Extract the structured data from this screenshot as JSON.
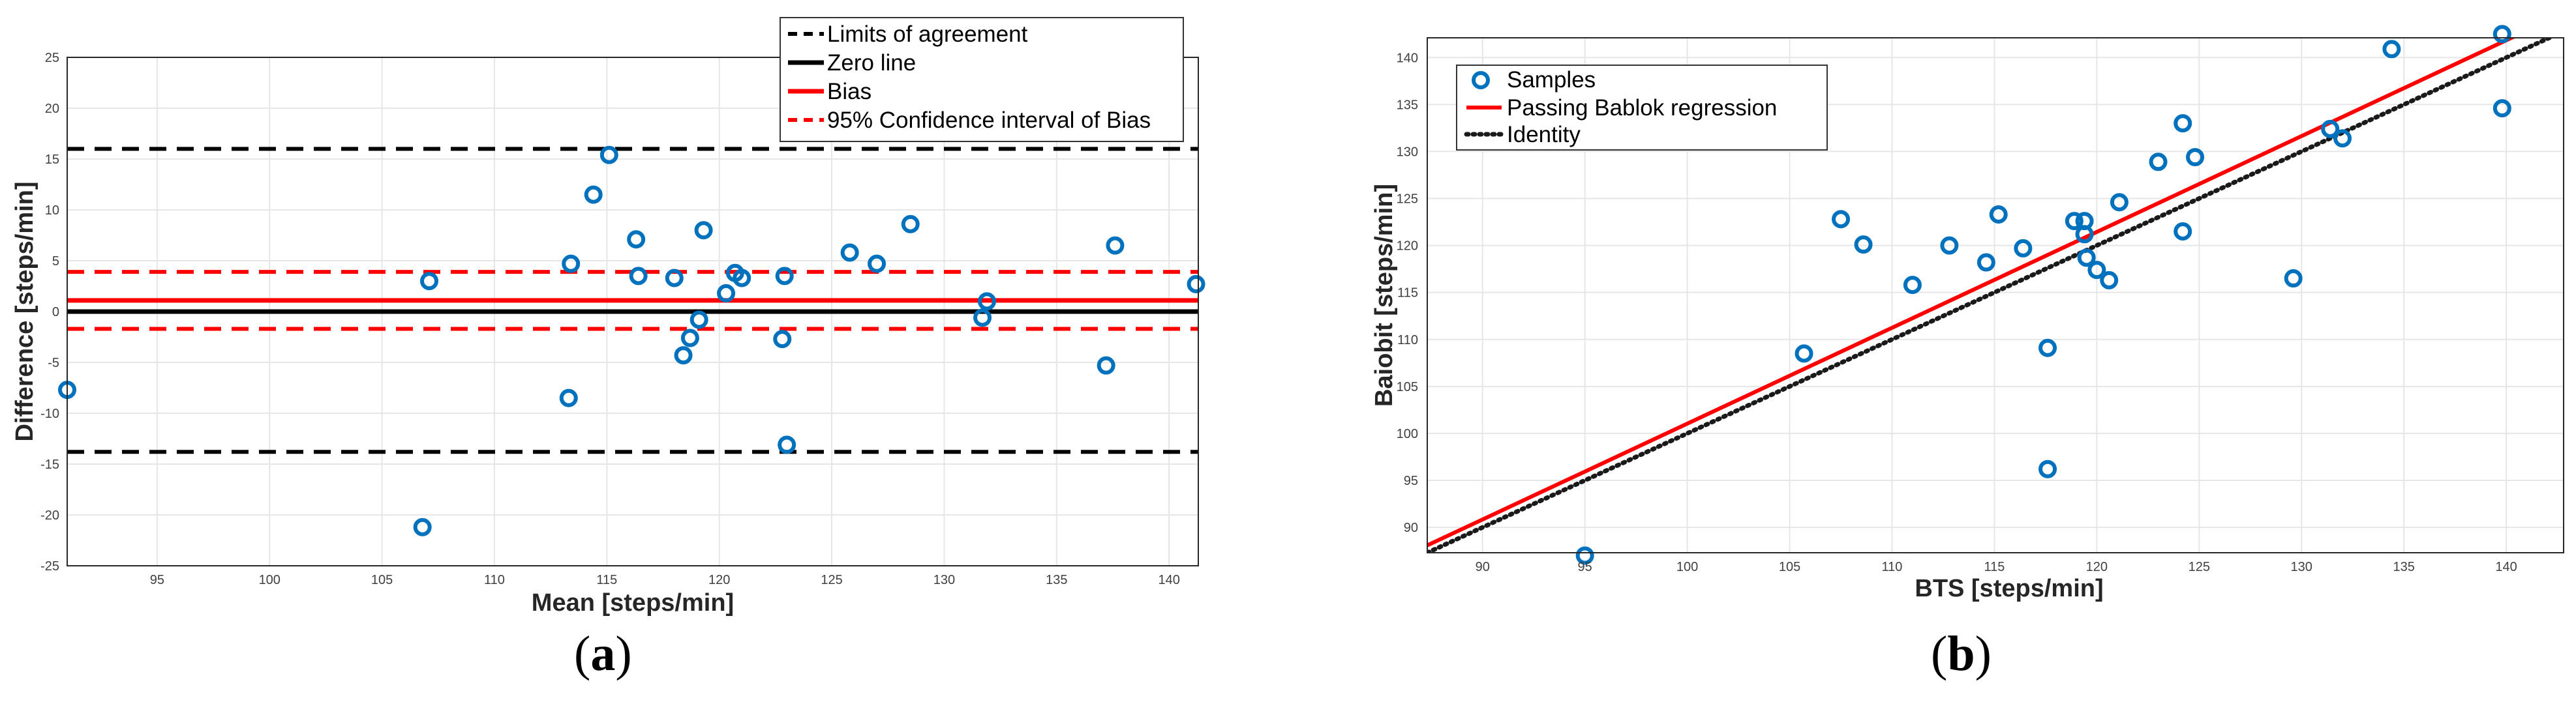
{
  "chart_data": [
    {
      "type": "scatter",
      "panel": "(a)",
      "xlabel": "Mean [steps/min]",
      "ylabel": "Difference [steps/min]",
      "xlim": [
        91,
        141.3
      ],
      "ylim": [
        -25,
        25
      ],
      "xticks": [
        95,
        100,
        105,
        110,
        115,
        120,
        125,
        130,
        135,
        140
      ],
      "yticks": [
        -25,
        -20,
        -15,
        -10,
        -5,
        0,
        5,
        10,
        15,
        20,
        25
      ],
      "grid": true,
      "legend_position": "top-right",
      "legend": [
        "Limits of agreement",
        "Zero line",
        "Bias",
        "95% Confidence interval of Bias"
      ],
      "lines": {
        "upper_loa": 16.0,
        "lower_loa": -13.8,
        "zero": 0,
        "bias": 1.1,
        "ci_upper": 3.9,
        "ci_lower": -1.7
      },
      "points": [
        [
          91.0,
          -7.7
        ],
        [
          106.8,
          -21.2
        ],
        [
          107.1,
          3.0
        ],
        [
          113.3,
          -8.5
        ],
        [
          113.4,
          4.7
        ],
        [
          114.4,
          11.5
        ],
        [
          115.1,
          15.4
        ],
        [
          116.3,
          7.1
        ],
        [
          116.4,
          3.5
        ],
        [
          118.0,
          3.3
        ],
        [
          118.4,
          -4.3
        ],
        [
          118.7,
          -2.6
        ],
        [
          119.1,
          -0.8
        ],
        [
          119.3,
          8.0
        ],
        [
          120.3,
          1.8
        ],
        [
          120.7,
          3.8
        ],
        [
          121.0,
          3.3
        ],
        [
          122.8,
          -2.7
        ],
        [
          122.9,
          3.5
        ],
        [
          123.0,
          -13.1
        ],
        [
          125.8,
          5.8
        ],
        [
          127.0,
          4.7
        ],
        [
          128.5,
          8.6
        ],
        [
          131.7,
          -0.6
        ],
        [
          131.9,
          1.0
        ],
        [
          137.2,
          -5.3
        ],
        [
          137.6,
          6.5
        ],
        [
          141.2,
          2.7
        ]
      ]
    },
    {
      "type": "scatter",
      "panel": "(b)",
      "xlabel": "BTS [steps/min]",
      "ylabel": "Baiobit [steps/min]",
      "xlim": [
        87.3,
        142.8
      ],
      "ylim": [
        87.3,
        142.1
      ],
      "xticks": [
        90,
        95,
        100,
        105,
        110,
        115,
        120,
        125,
        130,
        135,
        140
      ],
      "yticks": [
        90,
        95,
        100,
        105,
        110,
        115,
        120,
        125,
        130,
        135,
        140
      ],
      "grid": true,
      "legend_position": "top-left",
      "legend": [
        "Samples",
        "Passing Bablok regression",
        "Identity"
      ],
      "regression": {
        "slope": 1.02,
        "intercept": -0.96
      },
      "identity": {
        "slope": 1,
        "intercept": 0
      },
      "points": [
        [
          95.0,
          87.0
        ],
        [
          105.7,
          108.5
        ],
        [
          107.5,
          122.8
        ],
        [
          108.6,
          120.1
        ],
        [
          111.0,
          115.8
        ],
        [
          112.8,
          120.0
        ],
        [
          114.6,
          118.2
        ],
        [
          115.2,
          123.3
        ],
        [
          116.4,
          119.7
        ],
        [
          117.6,
          109.1
        ],
        [
          117.6,
          96.2
        ],
        [
          118.9,
          122.6
        ],
        [
          119.4,
          122.6
        ],
        [
          119.4,
          121.2
        ],
        [
          119.5,
          118.7
        ],
        [
          120.0,
          117.4
        ],
        [
          120.6,
          116.3
        ],
        [
          121.1,
          124.6
        ],
        [
          123.0,
          128.9
        ],
        [
          124.2,
          133.0
        ],
        [
          124.2,
          121.5
        ],
        [
          124.8,
          129.4
        ],
        [
          129.6,
          116.5
        ],
        [
          131.4,
          132.4
        ],
        [
          132.0,
          131.4
        ],
        [
          134.4,
          140.9
        ],
        [
          139.8,
          142.5
        ],
        [
          139.8,
          134.6
        ]
      ]
    }
  ],
  "captions": {
    "a": "a",
    "b": "b"
  },
  "colors": {
    "points": "#0072BD",
    "bias": "#FF0000",
    "grid": "#e6e6e6",
    "axis": "#262626"
  }
}
